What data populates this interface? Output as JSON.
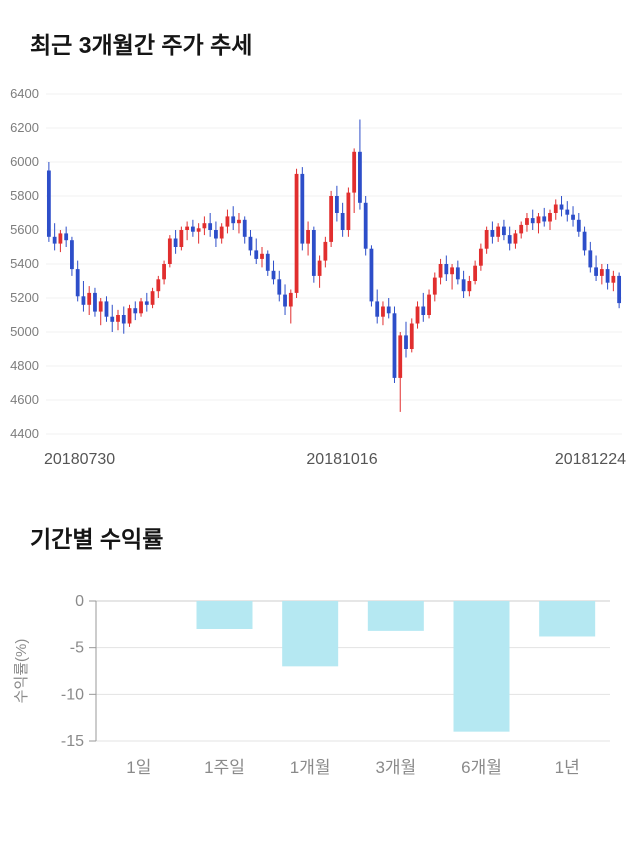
{
  "chart_data": [
    {
      "type": "candlestick",
      "title": "최근 3개월간 주가 추세",
      "ylim": [
        4400,
        6400
      ],
      "y_ticks": [
        6400,
        6200,
        6000,
        5800,
        5600,
        5400,
        5200,
        5000,
        4800,
        4600,
        4400
      ],
      "x_tick_labels": [
        "20180730",
        "20181016",
        "20181224"
      ],
      "up_color": "#e12e2e",
      "down_color": "#2d4ec9",
      "tick_text_color": "#7d7d7d",
      "date_text_color": "#555555",
      "grid_color": "#f2f2f2",
      "candles": [
        [
          5950,
          6000,
          5530,
          5560
        ],
        [
          5560,
          5640,
          5480,
          5520
        ],
        [
          5520,
          5600,
          5470,
          5580
        ],
        [
          5580,
          5620,
          5500,
          5540
        ],
        [
          5540,
          5560,
          5330,
          5370
        ],
        [
          5370,
          5420,
          5180,
          5210
        ],
        [
          5210,
          5300,
          5120,
          5160
        ],
        [
          5160,
          5270,
          5100,
          5230
        ],
        [
          5230,
          5260,
          5090,
          5120
        ],
        [
          5120,
          5200,
          5040,
          5180
        ],
        [
          5180,
          5210,
          5060,
          5090
        ],
        [
          5090,
          5160,
          5000,
          5060
        ],
        [
          5060,
          5130,
          5010,
          5100
        ],
        [
          5100,
          5150,
          4990,
          5050
        ],
        [
          5050,
          5160,
          5030,
          5140
        ],
        [
          5140,
          5180,
          5070,
          5110
        ],
        [
          5110,
          5200,
          5090,
          5180
        ],
        [
          5180,
          5230,
          5120,
          5160
        ],
        [
          5160,
          5260,
          5140,
          5240
        ],
        [
          5240,
          5330,
          5200,
          5310
        ],
        [
          5310,
          5420,
          5280,
          5400
        ],
        [
          5400,
          5570,
          5380,
          5550
        ],
        [
          5550,
          5600,
          5460,
          5500
        ],
        [
          5500,
          5620,
          5480,
          5600
        ],
        [
          5600,
          5650,
          5540,
          5620
        ],
        [
          5620,
          5660,
          5560,
          5590
        ],
        [
          5590,
          5640,
          5520,
          5610
        ],
        [
          5610,
          5680,
          5570,
          5640
        ],
        [
          5640,
          5700,
          5560,
          5600
        ],
        [
          5600,
          5650,
          5500,
          5550
        ],
        [
          5550,
          5640,
          5520,
          5620
        ],
        [
          5620,
          5720,
          5580,
          5680
        ],
        [
          5680,
          5740,
          5600,
          5640
        ],
        [
          5640,
          5700,
          5580,
          5660
        ],
        [
          5660,
          5680,
          5520,
          5560
        ],
        [
          5560,
          5600,
          5450,
          5480
        ],
        [
          5480,
          5550,
          5400,
          5430
        ],
        [
          5430,
          5500,
          5380,
          5460
        ],
        [
          5460,
          5480,
          5330,
          5360
        ],
        [
          5360,
          5420,
          5280,
          5310
        ],
        [
          5310,
          5360,
          5180,
          5220
        ],
        [
          5220,
          5280,
          5100,
          5150
        ],
        [
          5150,
          5250,
          5050,
          5230
        ],
        [
          5230,
          5960,
          5200,
          5930
        ],
        [
          5930,
          5970,
          5480,
          5520
        ],
        [
          5520,
          5650,
          5450,
          5600
        ],
        [
          5600,
          5620,
          5290,
          5330
        ],
        [
          5330,
          5450,
          5260,
          5420
        ],
        [
          5420,
          5560,
          5380,
          5530
        ],
        [
          5530,
          5830,
          5500,
          5800
        ],
        [
          5800,
          5860,
          5650,
          5700
        ],
        [
          5700,
          5760,
          5560,
          5600
        ],
        [
          5600,
          5850,
          5560,
          5820
        ],
        [
          5820,
          6080,
          5700,
          6060
        ],
        [
          6060,
          6250,
          5720,
          5760
        ],
        [
          5760,
          5800,
          5450,
          5490
        ],
        [
          5490,
          5510,
          5150,
          5180
        ],
        [
          5180,
          5250,
          5050,
          5090
        ],
        [
          5090,
          5180,
          5040,
          5150
        ],
        [
          5150,
          5200,
          5080,
          5110
        ],
        [
          5110,
          5150,
          4700,
          4730
        ],
        [
          4730,
          5000,
          4530,
          4980
        ],
        [
          4980,
          5060,
          4850,
          4900
        ],
        [
          4900,
          5080,
          4880,
          5050
        ],
        [
          5050,
          5180,
          5020,
          5150
        ],
        [
          5150,
          5230,
          5060,
          5100
        ],
        [
          5100,
          5250,
          5080,
          5220
        ],
        [
          5220,
          5350,
          5180,
          5320
        ],
        [
          5320,
          5430,
          5280,
          5400
        ],
        [
          5400,
          5450,
          5300,
          5340
        ],
        [
          5340,
          5400,
          5250,
          5380
        ],
        [
          5380,
          5420,
          5280,
          5310
        ],
        [
          5310,
          5360,
          5200,
          5240
        ],
        [
          5240,
          5330,
          5210,
          5300
        ],
        [
          5300,
          5420,
          5280,
          5390
        ],
        [
          5390,
          5520,
          5360,
          5490
        ],
        [
          5490,
          5620,
          5460,
          5600
        ],
        [
          5600,
          5650,
          5520,
          5560
        ],
        [
          5560,
          5640,
          5530,
          5620
        ],
        [
          5620,
          5660,
          5540,
          5570
        ],
        [
          5570,
          5620,
          5480,
          5520
        ],
        [
          5520,
          5600,
          5490,
          5580
        ],
        [
          5580,
          5650,
          5550,
          5630
        ],
        [
          5630,
          5700,
          5590,
          5670
        ],
        [
          5670,
          5720,
          5600,
          5640
        ],
        [
          5640,
          5700,
          5580,
          5680
        ],
        [
          5680,
          5730,
          5620,
          5650
        ],
        [
          5650,
          5720,
          5600,
          5700
        ],
        [
          5700,
          5780,
          5660,
          5750
        ],
        [
          5750,
          5800,
          5680,
          5720
        ],
        [
          5720,
          5770,
          5650,
          5690
        ],
        [
          5690,
          5740,
          5620,
          5660
        ],
        [
          5660,
          5700,
          5560,
          5590
        ],
        [
          5590,
          5620,
          5450,
          5480
        ],
        [
          5480,
          5530,
          5350,
          5380
        ],
        [
          5380,
          5450,
          5300,
          5330
        ],
        [
          5330,
          5400,
          5280,
          5370
        ],
        [
          5370,
          5400,
          5250,
          5290
        ],
        [
          5290,
          5360,
          5240,
          5330
        ],
        [
          5330,
          5350,
          5140,
          5170
        ]
      ]
    },
    {
      "type": "bar",
      "title": "기간별 수익률",
      "categories": [
        "1일",
        "1주일",
        "1개월",
        "3개월",
        "6개월",
        "1년"
      ],
      "values": [
        0,
        -3,
        -7,
        -3.2,
        -14,
        -3.8
      ],
      "ylabel": "수익률(%)",
      "ylim": [
        -15,
        0
      ],
      "y_ticks": [
        0,
        -5,
        -10,
        -15
      ],
      "bar_color": "#b5e8f2",
      "axis_color": "#999999",
      "grid_color": "#e3e3e3",
      "zero_line_color": "#cccccc",
      "tick_text_color": "#8a8a8a",
      "category_text_color": "#8a8a8a"
    }
  ]
}
